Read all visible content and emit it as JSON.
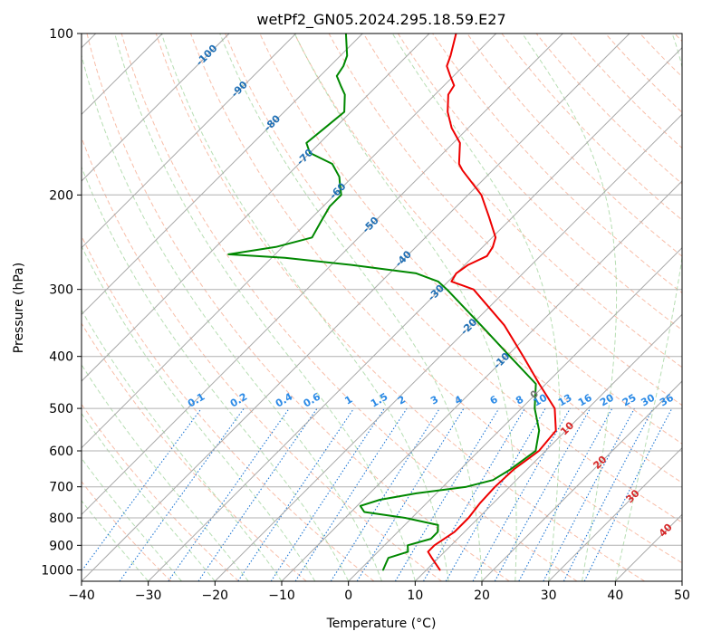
{
  "chart_data": {
    "type": "line",
    "subtype": "skew-T log-P diagram",
    "title": "wetPf2_GN05.2024.295.18.59.E27",
    "xlabel": "Temperature (°C)",
    "ylabel": "Pressure (hPa)",
    "xlim": [
      -40,
      50
    ],
    "ylim": [
      1050,
      100
    ],
    "y_scale": "log",
    "grid": true,
    "x_ticks": [
      -40,
      -30,
      -20,
      -10,
      0,
      10,
      20,
      30,
      40,
      50
    ],
    "y_ticks": [
      1000,
      900,
      800,
      700,
      600,
      500,
      400,
      300,
      200,
      100
    ],
    "isotherm_labels": [
      -100,
      -90,
      -80,
      -70,
      -60,
      -50,
      -40,
      -30,
      -20,
      -10,
      0,
      10,
      20,
      30,
      40
    ],
    "mixing_ratio_labels": [
      "0.1",
      "0.2",
      "0.4",
      "0.6",
      "1",
      "1.5",
      "2",
      "3",
      "4",
      "6",
      "8",
      "10",
      "13",
      "16",
      "20",
      "25",
      "30",
      "36"
    ],
    "series": [
      {
        "color": "#ee0000",
        "points": [
          [
            1000,
            12.0
          ],
          [
            950,
            9.0
          ],
          [
            925,
            7.5
          ],
          [
            900,
            7.5
          ],
          [
            875,
            8.0
          ],
          [
            850,
            8.5
          ],
          [
            800,
            8.5
          ],
          [
            750,
            8.0
          ],
          [
            700,
            7.8
          ],
          [
            650,
            8.0
          ],
          [
            600,
            9.0
          ],
          [
            550,
            8.5
          ],
          [
            500,
            5.0
          ],
          [
            450,
            -1.0
          ],
          [
            400,
            -7.5
          ],
          [
            350,
            -15.0
          ],
          [
            300,
            -25.0
          ],
          [
            290,
            -29.5
          ],
          [
            280,
            -30.0
          ],
          [
            270,
            -29.5
          ],
          [
            260,
            -28.0
          ],
          [
            250,
            -28.5
          ],
          [
            240,
            -29.5
          ],
          [
            220,
            -33.5
          ],
          [
            200,
            -38.0
          ],
          [
            180,
            -44.5
          ],
          [
            175,
            -46.0
          ],
          [
            160,
            -49.0
          ],
          [
            150,
            -52.5
          ],
          [
            140,
            -55.5
          ],
          [
            130,
            -58.0
          ],
          [
            125,
            -58.5
          ],
          [
            120,
            -60.5
          ],
          [
            115,
            -62.5
          ],
          [
            110,
            -63.5
          ],
          [
            100,
            -66.0
          ]
        ]
      },
      {
        "color": "#008800",
        "points": [
          [
            1000,
            3.5
          ],
          [
            975,
            3.0
          ],
          [
            950,
            2.5
          ],
          [
            925,
            4.5
          ],
          [
            900,
            3.5
          ],
          [
            875,
            6.0
          ],
          [
            850,
            6.0
          ],
          [
            825,
            5.0
          ],
          [
            800,
            -1.0
          ],
          [
            780,
            -8.0
          ],
          [
            760,
            -9.5
          ],
          [
            740,
            -7.5
          ],
          [
            720,
            -3.0
          ],
          [
            700,
            3.5
          ],
          [
            680,
            6.5
          ],
          [
            650,
            7.5
          ],
          [
            600,
            8.5
          ],
          [
            550,
            6.0
          ],
          [
            500,
            2.0
          ],
          [
            450,
            -1.5
          ],
          [
            400,
            -9.5
          ],
          [
            350,
            -18.5
          ],
          [
            300,
            -29.0
          ],
          [
            290,
            -31.5
          ],
          [
            280,
            -36.0
          ],
          [
            270,
            -47.0
          ],
          [
            262,
            -58.0
          ],
          [
            258,
            -67.0
          ],
          [
            250,
            -61.0
          ],
          [
            240,
            -57.0
          ],
          [
            225,
            -58.0
          ],
          [
            210,
            -59.0
          ],
          [
            200,
            -59.0
          ],
          [
            190,
            -61.0
          ],
          [
            185,
            -62.0
          ],
          [
            175,
            -65.0
          ],
          [
            167,
            -70.0
          ],
          [
            160,
            -72.0
          ],
          [
            150,
            -71.5
          ],
          [
            140,
            -71.0
          ],
          [
            130,
            -73.5
          ],
          [
            125,
            -75.5
          ],
          [
            120,
            -77.5
          ],
          [
            115,
            -78.0
          ],
          [
            110,
            -79.0
          ],
          [
            100,
            -82.5
          ]
        ]
      }
    ]
  }
}
